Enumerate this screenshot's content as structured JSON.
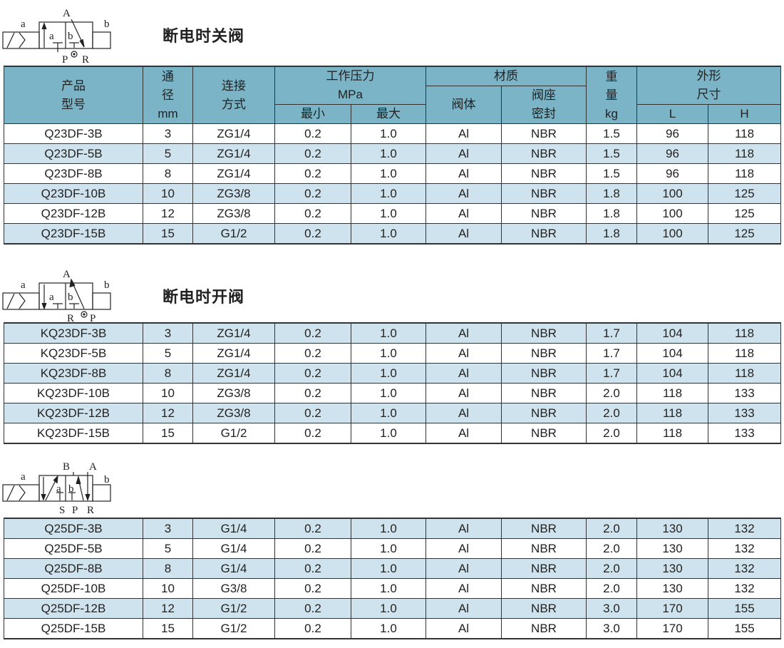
{
  "sections": [
    {
      "title": "断电时关阀",
      "symbol": {
        "labels": [
          "a",
          "A",
          "b",
          "a",
          "b",
          "P",
          "R"
        ]
      },
      "rows": [
        [
          "Q23DF-3B",
          "3",
          "ZG1/4",
          "0.2",
          "1.0",
          "Al",
          "NBR",
          "1.5",
          "96",
          "118"
        ],
        [
          "Q23DF-5B",
          "5",
          "ZG1/4",
          "0.2",
          "1.0",
          "Al",
          "NBR",
          "1.5",
          "96",
          "118"
        ],
        [
          "Q23DF-8B",
          "8",
          "ZG1/4",
          "0.2",
          "1.0",
          "Al",
          "NBR",
          "1.5",
          "96",
          "118"
        ],
        [
          "Q23DF-10B",
          "10",
          "ZG3/8",
          "0.2",
          "1.0",
          "Al",
          "NBR",
          "1.8",
          "100",
          "125"
        ],
        [
          "Q23DF-12B",
          "12",
          "ZG3/8",
          "0.2",
          "1.0",
          "Al",
          "NBR",
          "1.8",
          "100",
          "125"
        ],
        [
          "Q23DF-15B",
          "15",
          "G1/2",
          "0.2",
          "1.0",
          "Al",
          "NBR",
          "1.8",
          "100",
          "125"
        ]
      ]
    },
    {
      "title": "断电时开阀",
      "symbol": {
        "labels": [
          "a",
          "A",
          "b",
          "a",
          "b",
          "R",
          "P"
        ]
      },
      "rows": [
        [
          "KQ23DF-3B",
          "3",
          "ZG1/4",
          "0.2",
          "1.0",
          "Al",
          "NBR",
          "1.7",
          "104",
          "118"
        ],
        [
          "KQ23DF-5B",
          "5",
          "ZG1/4",
          "0.2",
          "1.0",
          "Al",
          "NBR",
          "1.7",
          "104",
          "118"
        ],
        [
          "KQ23DF-8B",
          "8",
          "ZG1/4",
          "0.2",
          "1.0",
          "Al",
          "NBR",
          "1.7",
          "104",
          "118"
        ],
        [
          "KQ23DF-10B",
          "10",
          "ZG3/8",
          "0.2",
          "1.0",
          "Al",
          "NBR",
          "2.0",
          "118",
          "133"
        ],
        [
          "KQ23DF-12B",
          "12",
          "ZG3/8",
          "0.2",
          "1.0",
          "Al",
          "NBR",
          "2.0",
          "118",
          "133"
        ],
        [
          "KQ23DF-15B",
          "15",
          "G1/2",
          "0.2",
          "1.0",
          "Al",
          "NBR",
          "2.0",
          "118",
          "133"
        ]
      ]
    },
    {
      "title": "",
      "symbol": {
        "labels": [
          "a",
          "B",
          "A",
          "b",
          "a",
          "b",
          "S",
          "P",
          "R"
        ]
      },
      "rows": [
        [
          "Q25DF-3B",
          "3",
          "G1/4",
          "0.2",
          "1.0",
          "Al",
          "NBR",
          "2.0",
          "130",
          "132"
        ],
        [
          "Q25DF-5B",
          "5",
          "G1/4",
          "0.2",
          "1.0",
          "Al",
          "NBR",
          "2.0",
          "130",
          "132"
        ],
        [
          "Q25DF-8B",
          "8",
          "G1/4",
          "0.2",
          "1.0",
          "Al",
          "NBR",
          "2.0",
          "130",
          "132"
        ],
        [
          "Q25DF-10B",
          "10",
          "G3/8",
          "0.2",
          "1.0",
          "Al",
          "NBR",
          "2.0",
          "130",
          "132"
        ],
        [
          "Q25DF-12B",
          "12",
          "G1/2",
          "0.2",
          "1.0",
          "Al",
          "NBR",
          "3.0",
          "170",
          "155"
        ],
        [
          "Q25DF-15B",
          "15",
          "G1/2",
          "0.2",
          "1.0",
          "Al",
          "NBR",
          "3.0",
          "170",
          "155"
        ]
      ]
    }
  ],
  "header": {
    "model_1": "产品",
    "model_2": "型号",
    "bore_1": "通",
    "bore_2": "径",
    "bore_unit": "mm",
    "conn_1": "连接",
    "conn_2": "方式",
    "pressure": "工作压力",
    "pressure_unit": "MPa",
    "min": "最小",
    "max": "最大",
    "material": "材质",
    "body": "阀体",
    "seat_1": "阀座",
    "seat_2": "密封",
    "weight_1": "重",
    "weight_2": "量",
    "weight_unit": "kg",
    "dim_1": "外形",
    "dim_2": "尺寸",
    "L": "L",
    "H": "H"
  },
  "colors": {
    "header": "#7ab4c6",
    "light_row": "#cfe3ee"
  }
}
